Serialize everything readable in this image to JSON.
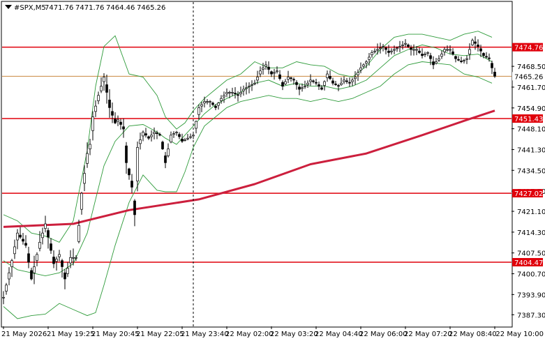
{
  "chart_data": {
    "type": "candlestick",
    "header": {
      "symbol": "#SPX,M5",
      "open": "7471.76",
      "high": "7471.76",
      "low": "7464.46",
      "close": "7465.26"
    },
    "ylim": [
      7383.5,
      7489.5
    ],
    "y_ticks": [
      "7468.50",
      "7461.70",
      "7454.90",
      "7448.10",
      "7441.30",
      "7434.50",
      "7427.70",
      "7421.10",
      "7414.30",
      "7407.50",
      "7400.70",
      "7393.90",
      "7387.30"
    ],
    "x_ticks": [
      "21 May 2026",
      "21 May 19:25",
      "21 May 20:45",
      "21 May 22:05",
      "21 May 23:40",
      "22 May 02:00",
      "22 May 03:20",
      "22 May 04:40",
      "22 May 06:00",
      "22 May 07:20",
      "22 May 08:40",
      "22 May 10:00"
    ],
    "x_tick_index": [
      0,
      16,
      32,
      48,
      64,
      80,
      96,
      112,
      128,
      144,
      160,
      176
    ],
    "vline_index": 68,
    "levels": [
      {
        "value": 7474.76,
        "label": "7474.76",
        "color": "#e0000b"
      },
      {
        "value": 7451.43,
        "label": "7451.43",
        "color": "#e0000b"
      },
      {
        "value": 7427.02,
        "label": "7427.02",
        "color": "#e0000b"
      },
      {
        "value": 7404.47,
        "label": "7404.47",
        "color": "#e0000b"
      }
    ],
    "bid": {
      "value": 7465.26,
      "label": "7465.26",
      "color": "#c9873f"
    },
    "ma": {
      "color": "#cc1f3d",
      "x": [
        0,
        25,
        45,
        70,
        90,
        110,
        130,
        150,
        166,
        176
      ],
      "y": [
        7416.0,
        7417.0,
        7421.5,
        7425.0,
        7430.0,
        7436.5,
        7440.0,
        7446.0,
        7451.0,
        7454.0
      ]
    },
    "bollinger": {
      "color": "#2e9b3a",
      "x": [
        0,
        5,
        10,
        15,
        20,
        25,
        30,
        33,
        36,
        40,
        45,
        50,
        55,
        58,
        62,
        65,
        68,
        72,
        76,
        80,
        85,
        90,
        95,
        100,
        105,
        110,
        115,
        120,
        125,
        130,
        135,
        140,
        145,
        150,
        155,
        160,
        165,
        170,
        175
      ],
      "upper": [
        7420.0,
        7418.0,
        7414.0,
        7413.0,
        7411.0,
        7418.0,
        7441.0,
        7462.0,
        7475.0,
        7478.5,
        7466.0,
        7465.0,
        7459.0,
        7452.0,
        7448.0,
        7450.0,
        7454.0,
        7458.0,
        7461.0,
        7464.0,
        7466.0,
        7470.0,
        7468.0,
        7468.0,
        7470.0,
        7469.0,
        7468.5,
        7466.0,
        7465.0,
        7468.5,
        7474.0,
        7478.0,
        7479.0,
        7479.0,
        7478.0,
        7477.0,
        7479.0,
        7480.0,
        7478.0
      ],
      "middle": [
        7405.0,
        7402.0,
        7401.0,
        7400.0,
        7401.0,
        7404.0,
        7414.0,
        7425.0,
        7436.0,
        7444.0,
        7449.0,
        7449.5,
        7447.0,
        7445.0,
        7443.0,
        7446.0,
        7449.0,
        7453.0,
        7456.0,
        7458.0,
        7460.0,
        7463.0,
        7464.0,
        7462.0,
        7463.0,
        7462.0,
        7462.0,
        7461.0,
        7462.0,
        7464.0,
        7468.0,
        7472.0,
        7474.0,
        7475.5,
        7474.5,
        7472.5,
        7472.0,
        7472.5,
        7470.0
      ],
      "lower": [
        7390.0,
        7386.0,
        7387.0,
        7387.5,
        7391.0,
        7389.0,
        7387.0,
        7388.0,
        7397.0,
        7410.0,
        7424.0,
        7433.0,
        7428.0,
        7427.5,
        7427.5,
        7434.0,
        7442.0,
        7449.0,
        7452.0,
        7455.0,
        7457.0,
        7458.0,
        7459.0,
        7458.0,
        7458.0,
        7457.0,
        7458.0,
        7457.0,
        7458.0,
        7460.0,
        7462.0,
        7466.0,
        7469.0,
        7470.0,
        7469.5,
        7469.0,
        7466.0,
        7465.0,
        7463.0
      ]
    },
    "price_path": {
      "x": [
        0,
        3,
        5,
        8,
        10,
        13,
        15,
        18,
        20,
        22,
        24,
        26,
        28,
        30,
        31,
        32,
        34,
        36,
        38,
        40,
        41,
        43,
        44,
        46,
        47,
        48,
        50,
        52,
        54,
        56,
        58,
        60,
        62,
        64,
        66,
        68,
        70,
        72,
        74,
        76,
        78,
        80,
        82,
        84,
        86,
        88,
        90,
        92,
        94,
        96,
        98,
        100,
        102,
        104,
        106,
        108,
        110,
        112,
        114,
        116,
        118,
        120,
        122,
        124,
        126,
        128,
        130,
        132,
        134,
        136,
        138,
        140,
        142,
        144,
        146,
        148,
        150,
        152,
        154,
        156,
        158,
        160,
        162,
        164,
        166,
        168,
        170,
        172,
        174,
        175,
        176
      ],
      "y": [
        7393.0,
        7405.0,
        7414.0,
        7410.0,
        7399.0,
        7411.0,
        7417.0,
        7404.0,
        7407.0,
        7399.0,
        7406.0,
        7406.0,
        7427.0,
        7440.0,
        7443.0,
        7452.0,
        7459.0,
        7465.0,
        7455.0,
        7450.0,
        7451.0,
        7448.0,
        7437.0,
        7429.0,
        7420.0,
        7442.0,
        7447.0,
        7445.0,
        7447.0,
        7446.0,
        7437.0,
        7446.0,
        7447.0,
        7444.0,
        7445.0,
        7446.0,
        7455.0,
        7457.0,
        7457.0,
        7455.0,
        7458.0,
        7460.0,
        7460.0,
        7459.0,
        7461.0,
        7462.0,
        7463.0,
        7467.0,
        7469.0,
        7466.0,
        7467.0,
        7462.0,
        7465.0,
        7464.0,
        7461.0,
        7462.0,
        7464.0,
        7463.0,
        7461.0,
        7466.0,
        7463.0,
        7462.0,
        7464.0,
        7463.0,
        7465.0,
        7468.0,
        7470.0,
        7473.0,
        7474.0,
        7475.0,
        7473.0,
        7474.0,
        7475.0,
        7476.0,
        7474.0,
        7474.0,
        7472.0,
        7473.0,
        7469.0,
        7471.0,
        7474.0,
        7474.0,
        7471.0,
        7470.0,
        7471.0,
        7477.0,
        7475.0,
        7472.0,
        7471.0,
        7468.0,
        7465.26
      ]
    }
  }
}
